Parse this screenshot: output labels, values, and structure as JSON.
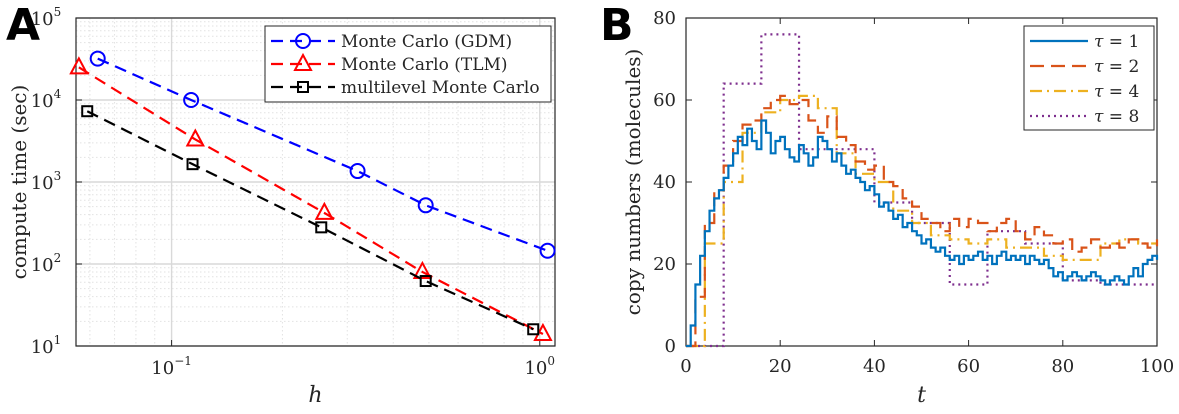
{
  "chart_data": [
    {
      "panel_label": "A",
      "type": "line",
      "x_scale": "log",
      "y_scale": "log",
      "xlabel": "h",
      "ylabel": "compute time (sec)",
      "xlim": [
        0.055,
        1.1
      ],
      "ylim": [
        10,
        100000
      ],
      "x_ticks": [
        {
          "value": 0.1,
          "label": "10",
          "exp": "−1"
        },
        {
          "value": 1,
          "label": "10",
          "exp": "0"
        }
      ],
      "y_ticks": [
        {
          "value": 10,
          "label": "10",
          "exp": "1"
        },
        {
          "value": 100,
          "label": "10",
          "exp": "2"
        },
        {
          "value": 1000,
          "label": "10",
          "exp": "3"
        },
        {
          "value": 10000,
          "label": "10",
          "exp": "4"
        },
        {
          "value": 100000,
          "label": "10",
          "exp": "5"
        }
      ],
      "grid": true,
      "legend_position": "top-right",
      "series": [
        {
          "name": "Monte Carlo (GDM)",
          "marker": "circle",
          "color": "#0000ff",
          "x": [
            0.063,
            0.113,
            0.32,
            0.49,
            1.05
          ],
          "y": [
            32000,
            10000,
            1360,
            520,
            145
          ]
        },
        {
          "name": "Monte Carlo (TLM)",
          "marker": "triangle",
          "color": "#ff0000",
          "x": [
            0.056,
            0.116,
            0.26,
            0.48,
            1.02
          ],
          "y": [
            25000,
            3300,
            420,
            80,
            14
          ]
        },
        {
          "name": "multilevel Monte Carlo",
          "marker": "square",
          "color": "#000000",
          "x": [
            0.059,
            0.114,
            0.255,
            0.49,
            0.96
          ],
          "y": [
            7300,
            1650,
            280,
            62,
            16
          ]
        }
      ]
    },
    {
      "panel_label": "B",
      "type": "line",
      "step": true,
      "xlabel": "t",
      "ylabel": "copy numbers (molecules)",
      "xlim": [
        0,
        100
      ],
      "ylim": [
        0,
        80
      ],
      "x_ticks": [
        0,
        20,
        40,
        60,
        80,
        100
      ],
      "y_ticks": [
        0,
        20,
        40,
        60,
        80
      ],
      "grid": false,
      "legend_position": "top-right",
      "series": [
        {
          "name": "τ = 1",
          "label_var": "τ",
          "label_val": "1",
          "dash": "solid",
          "color": "#0072bd",
          "x": [
            0,
            1,
            2,
            3,
            4,
            5,
            6,
            7,
            8,
            9,
            10,
            11,
            12,
            13,
            14,
            15,
            16,
            17,
            18,
            19,
            20,
            21,
            22,
            23,
            24,
            25,
            26,
            27,
            28,
            29,
            30,
            31,
            32,
            33,
            34,
            35,
            36,
            37,
            38,
            39,
            40,
            41,
            42,
            43,
            44,
            45,
            46,
            47,
            48,
            49,
            50,
            51,
            52,
            53,
            54,
            55,
            56,
            57,
            58,
            59,
            60,
            61,
            62,
            63,
            64,
            65,
            66,
            67,
            68,
            69,
            70,
            71,
            72,
            73,
            74,
            75,
            76,
            77,
            78,
            79,
            80,
            81,
            82,
            83,
            84,
            85,
            86,
            87,
            88,
            89,
            90,
            91,
            92,
            93,
            94,
            95,
            96,
            97,
            98,
            99,
            100
          ],
          "y": [
            0,
            5,
            15,
            22,
            28,
            33,
            36,
            38,
            41,
            44,
            47,
            51,
            49,
            53,
            50,
            48,
            55,
            52,
            47,
            50,
            51,
            48,
            46,
            45,
            49,
            47,
            44,
            46,
            51,
            50,
            48,
            45,
            47,
            44,
            42,
            43,
            41,
            40,
            38,
            39,
            37,
            34,
            35,
            33,
            31,
            32,
            29,
            30,
            28,
            27,
            25,
            26,
            24,
            23,
            24,
            22,
            21,
            22,
            20,
            22,
            21,
            22,
            23,
            21,
            22,
            20,
            22,
            23,
            21,
            22,
            21,
            22,
            20,
            22,
            21,
            20,
            21,
            19,
            17,
            18,
            16,
            17,
            18,
            17,
            16,
            17,
            18,
            17,
            16,
            15,
            16,
            17,
            16,
            15,
            17,
            19,
            17,
            20,
            21,
            22,
            21
          ]
        },
        {
          "name": "τ = 2",
          "label_var": "τ",
          "label_val": "2",
          "dash": "dashed",
          "color": "#d95319",
          "x": [
            0,
            2,
            4,
            6,
            8,
            10,
            12,
            14,
            16,
            18,
            20,
            22,
            24,
            26,
            28,
            30,
            32,
            34,
            36,
            38,
            40,
            42,
            44,
            46,
            48,
            50,
            52,
            54,
            56,
            58,
            60,
            62,
            64,
            66,
            68,
            70,
            72,
            74,
            76,
            78,
            80,
            82,
            84,
            86,
            88,
            90,
            92,
            94,
            96,
            98,
            100
          ],
          "y": [
            0,
            12,
            30,
            38,
            44,
            50,
            54,
            55,
            58,
            60,
            61,
            59,
            60,
            55,
            52,
            56,
            51,
            49,
            45,
            43,
            44,
            40,
            39,
            36,
            34,
            31,
            30,
            28,
            31,
            29,
            31,
            30,
            28,
            30,
            31,
            28,
            26,
            29,
            27,
            25,
            26,
            23,
            24,
            26,
            24,
            25,
            24,
            26,
            25,
            24,
            26
          ]
        },
        {
          "name": "τ = 4",
          "label_var": "τ",
          "label_val": "4",
          "dash": "dashdot",
          "color": "#edb120",
          "x": [
            0,
            4,
            8,
            12,
            16,
            20,
            24,
            28,
            32,
            36,
            40,
            44,
            48,
            52,
            56,
            60,
            64,
            68,
            72,
            76,
            80,
            84,
            88,
            92,
            96,
            100
          ],
          "y": [
            0,
            25,
            40,
            52,
            57,
            60,
            61,
            58,
            47,
            42,
            40,
            33,
            30,
            27,
            26,
            25,
            26,
            24,
            24,
            22,
            21,
            21,
            25,
            26,
            25,
            25
          ]
        },
        {
          "name": "τ = 8",
          "label_var": "τ",
          "label_val": "8",
          "dash": "dotted",
          "color": "#7e2f8e",
          "x": [
            0,
            8,
            16,
            24,
            32,
            40,
            48,
            56,
            64,
            72,
            80,
            88,
            96,
            100
          ],
          "y": [
            0,
            64,
            76,
            48,
            48,
            35,
            30,
            15,
            28,
            25,
            16,
            15,
            15,
            15
          ]
        }
      ]
    }
  ]
}
